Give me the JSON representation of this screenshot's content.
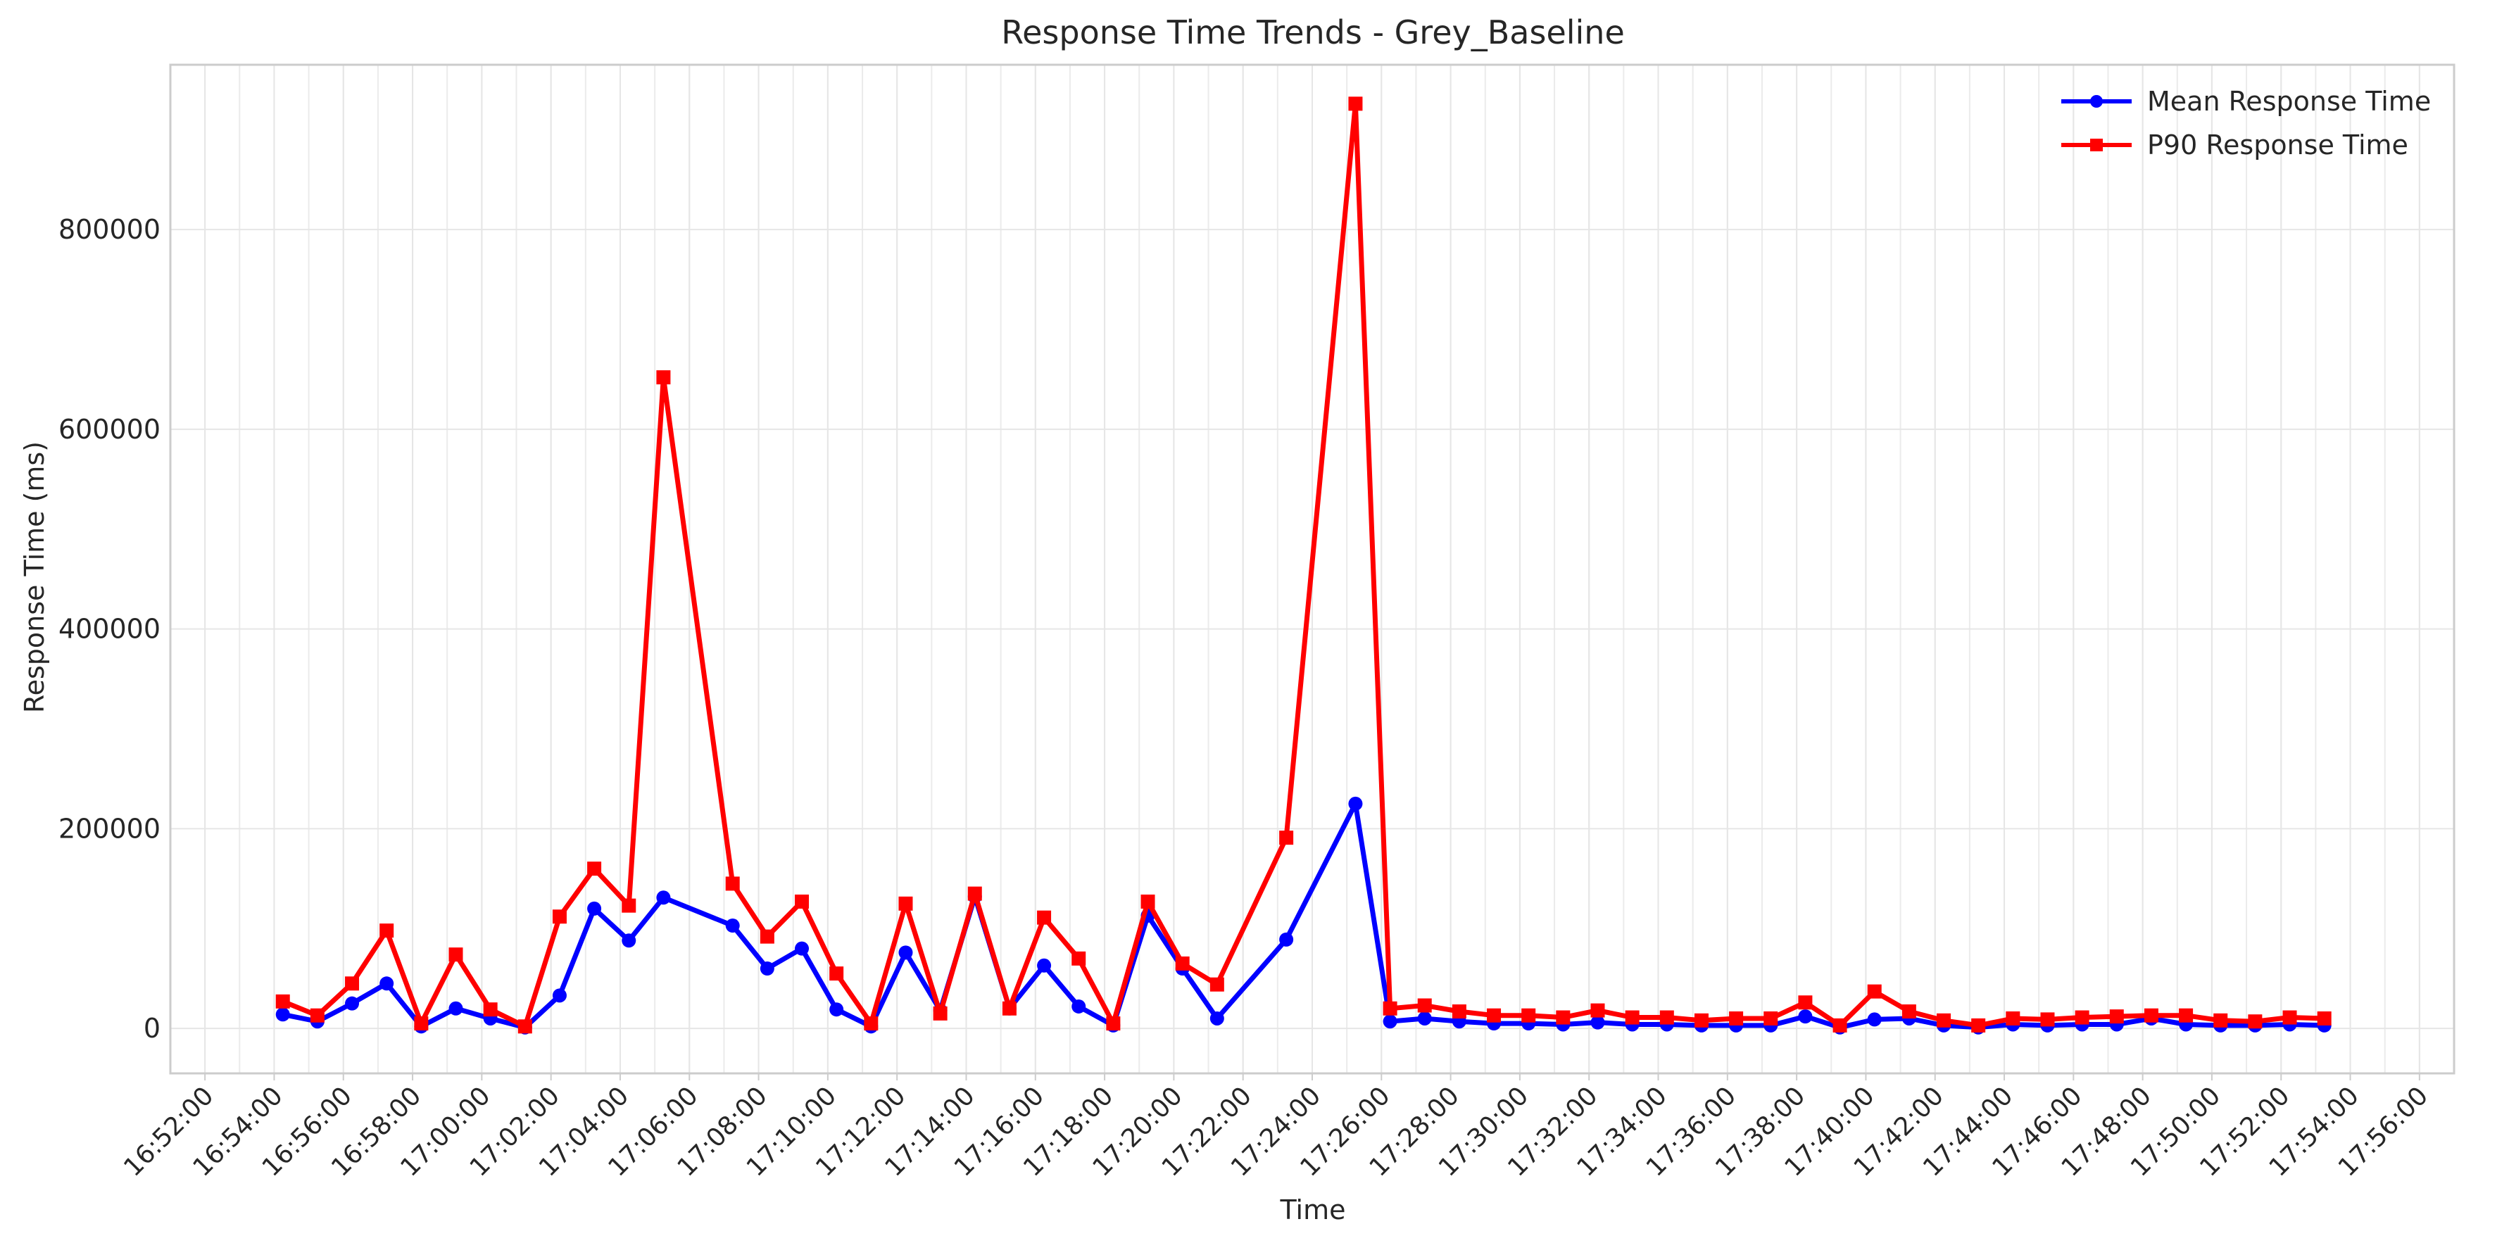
{
  "chart_data": {
    "type": "line",
    "title": "Response Time Trends - Grey_Baseline",
    "xlabel": "Time",
    "ylabel": "Response Time (ms)",
    "xlim": [
      "16:51:00",
      "17:57:00"
    ],
    "ylim": [
      -45000,
      965000
    ],
    "grid": true,
    "legend_position": "top-right",
    "x_tick_labels": [
      "16:52:00",
      "16:54:00",
      "16:56:00",
      "16:58:00",
      "17:00:00",
      "17:02:00",
      "17:04:00",
      "17:06:00",
      "17:08:00",
      "17:10:00",
      "17:12:00",
      "17:14:00",
      "17:16:00",
      "17:18:00",
      "17:20:00",
      "17:22:00",
      "17:24:00",
      "17:26:00",
      "17:28:00",
      "17:30:00",
      "17:32:00",
      "17:34:00",
      "17:36:00",
      "17:38:00",
      "17:40:00",
      "17:42:00",
      "17:44:00",
      "17:46:00",
      "17:48:00",
      "17:50:00",
      "17:52:00",
      "17:54:00",
      "17:56:00"
    ],
    "y_tick_labels": [
      "0",
      "200000",
      "400000",
      "600000",
      "800000"
    ],
    "y_ticks": [
      0,
      200000,
      400000,
      600000,
      800000
    ],
    "series": [
      {
        "name": "Mean Response Time",
        "color": "#0000ff",
        "marker": "circle",
        "points": [
          [
            "16:54:15",
            14000
          ],
          [
            "16:55:15",
            7000
          ],
          [
            "16:56:15",
            25000
          ],
          [
            "16:57:15",
            45000
          ],
          [
            "16:58:15",
            2000
          ],
          [
            "16:59:15",
            20000
          ],
          [
            "17:00:15",
            10000
          ],
          [
            "17:01:15",
            1000
          ],
          [
            "17:02:15",
            33000
          ],
          [
            "17:03:15",
            120000
          ],
          [
            "17:04:15",
            88000
          ],
          [
            "17:05:15",
            131000
          ],
          [
            "17:07:15",
            103000
          ],
          [
            "17:08:15",
            60000
          ],
          [
            "17:09:15",
            80000
          ],
          [
            "17:10:15",
            19000
          ],
          [
            "17:11:15",
            2000
          ],
          [
            "17:12:15",
            76000
          ],
          [
            "17:13:15",
            18000
          ],
          [
            "17:14:15",
            132000
          ],
          [
            "17:15:15",
            20000
          ],
          [
            "17:16:15",
            63000
          ],
          [
            "17:17:15",
            22000
          ],
          [
            "17:18:15",
            3000
          ],
          [
            "17:19:15",
            113000
          ],
          [
            "17:20:15",
            60000
          ],
          [
            "17:21:15",
            10000
          ],
          [
            "17:23:15",
            89000
          ],
          [
            "17:25:15",
            225000
          ],
          [
            "17:26:15",
            7000
          ],
          [
            "17:27:15",
            10000
          ],
          [
            "17:28:15",
            7000
          ],
          [
            "17:29:15",
            5000
          ],
          [
            "17:30:15",
            5000
          ],
          [
            "17:31:15",
            4000
          ],
          [
            "17:32:15",
            6000
          ],
          [
            "17:33:15",
            4000
          ],
          [
            "17:34:15",
            4000
          ],
          [
            "17:35:15",
            3000
          ],
          [
            "17:36:15",
            3000
          ],
          [
            "17:37:15",
            3000
          ],
          [
            "17:38:15",
            12000
          ],
          [
            "17:39:15",
            1000
          ],
          [
            "17:40:15",
            9000
          ],
          [
            "17:41:15",
            10000
          ],
          [
            "17:42:15",
            3000
          ],
          [
            "17:43:15",
            1000
          ],
          [
            "17:44:15",
            4000
          ],
          [
            "17:45:15",
            3000
          ],
          [
            "17:46:15",
            4000
          ],
          [
            "17:47:15",
            4000
          ],
          [
            "17:48:15",
            10000
          ],
          [
            "17:49:15",
            4000
          ],
          [
            "17:50:15",
            3000
          ],
          [
            "17:51:15",
            3000
          ],
          [
            "17:52:15",
            4000
          ],
          [
            "17:53:15",
            3000
          ]
        ]
      },
      {
        "name": "P90 Response Time",
        "color": "#ff0000",
        "marker": "square",
        "points": [
          [
            "16:54:15",
            27000
          ],
          [
            "16:55:15",
            13000
          ],
          [
            "16:56:15",
            45000
          ],
          [
            "16:57:15",
            98000
          ],
          [
            "16:58:15",
            5000
          ],
          [
            "16:59:15",
            74000
          ],
          [
            "17:00:15",
            19000
          ],
          [
            "17:01:15",
            2000
          ],
          [
            "17:02:15",
            112000
          ],
          [
            "17:03:15",
            160000
          ],
          [
            "17:04:15",
            123000
          ],
          [
            "17:05:15",
            652000
          ],
          [
            "17:07:15",
            145000
          ],
          [
            "17:08:15",
            92000
          ],
          [
            "17:09:15",
            127000
          ],
          [
            "17:10:15",
            55000
          ],
          [
            "17:11:15",
            5000
          ],
          [
            "17:12:15",
            125000
          ],
          [
            "17:13:15",
            15000
          ],
          [
            "17:14:15",
            135000
          ],
          [
            "17:15:15",
            20000
          ],
          [
            "17:16:15",
            111000
          ],
          [
            "17:17:15",
            70000
          ],
          [
            "17:18:15",
            5000
          ],
          [
            "17:19:15",
            127000
          ],
          [
            "17:20:15",
            65000
          ],
          [
            "17:21:15",
            44000
          ],
          [
            "17:23:15",
            191000
          ],
          [
            "17:25:15",
            926000
          ],
          [
            "17:26:15",
            20000
          ],
          [
            "17:27:15",
            23000
          ],
          [
            "17:28:15",
            17000
          ],
          [
            "17:29:15",
            13000
          ],
          [
            "17:30:15",
            13000
          ],
          [
            "17:31:15",
            11000
          ],
          [
            "17:32:15",
            18000
          ],
          [
            "17:33:15",
            11000
          ],
          [
            "17:34:15",
            11000
          ],
          [
            "17:35:15",
            8000
          ],
          [
            "17:36:15",
            10000
          ],
          [
            "17:37:15",
            10000
          ],
          [
            "17:38:15",
            26000
          ],
          [
            "17:39:15",
            3000
          ],
          [
            "17:40:15",
            37000
          ],
          [
            "17:41:15",
            17000
          ],
          [
            "17:42:15",
            8000
          ],
          [
            "17:43:15",
            3000
          ],
          [
            "17:44:15",
            10000
          ],
          [
            "17:45:15",
            9000
          ],
          [
            "17:46:15",
            11000
          ],
          [
            "17:47:15",
            12000
          ],
          [
            "17:48:15",
            13000
          ],
          [
            "17:49:15",
            13000
          ],
          [
            "17:50:15",
            8000
          ],
          [
            "17:51:15",
            7000
          ],
          [
            "17:52:15",
            11000
          ],
          [
            "17:53:15",
            10000
          ]
        ]
      }
    ]
  }
}
